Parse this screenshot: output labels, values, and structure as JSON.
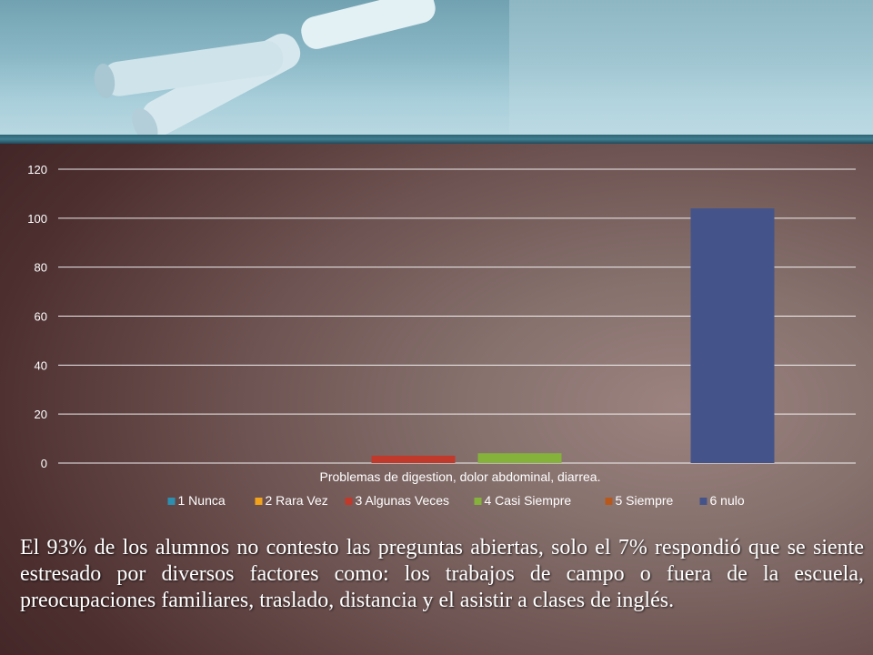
{
  "chart_data": {
    "type": "bar",
    "xlabel": "Problemas de digestion, dolor abdominal, diarrea.",
    "ylabel": "",
    "ylim": [
      0,
      120
    ],
    "yticks": [
      "0",
      "20",
      "40",
      "60",
      "80",
      "100",
      "120"
    ],
    "grid": true,
    "legend_position": "bottom",
    "series": [
      {
        "name": "1 Nunca",
        "value": 0,
        "color": "#2d8fb0"
      },
      {
        "name": "2 Rara Vez",
        "value": 0,
        "color": "#f3a31b"
      },
      {
        "name": "3 Algunas Veces",
        "value": 3,
        "color": "#c0392b"
      },
      {
        "name": "4 Casi Siempre",
        "value": 4,
        "color": "#84b23b"
      },
      {
        "name": "5 Siempre",
        "value": 0,
        "color": "#b8581c"
      },
      {
        "name": "6 nulo",
        "value": 104,
        "color": "#44548b"
      }
    ]
  },
  "caption": "El 93% de los alumnos no contesto las preguntas abiertas, solo  el 7% respondió que se siente estresado por diversos factores como: los trabajos de campo o fuera de la escuela, preocupaciones familiares, traslado, distancia y el asistir a clases de inglés."
}
